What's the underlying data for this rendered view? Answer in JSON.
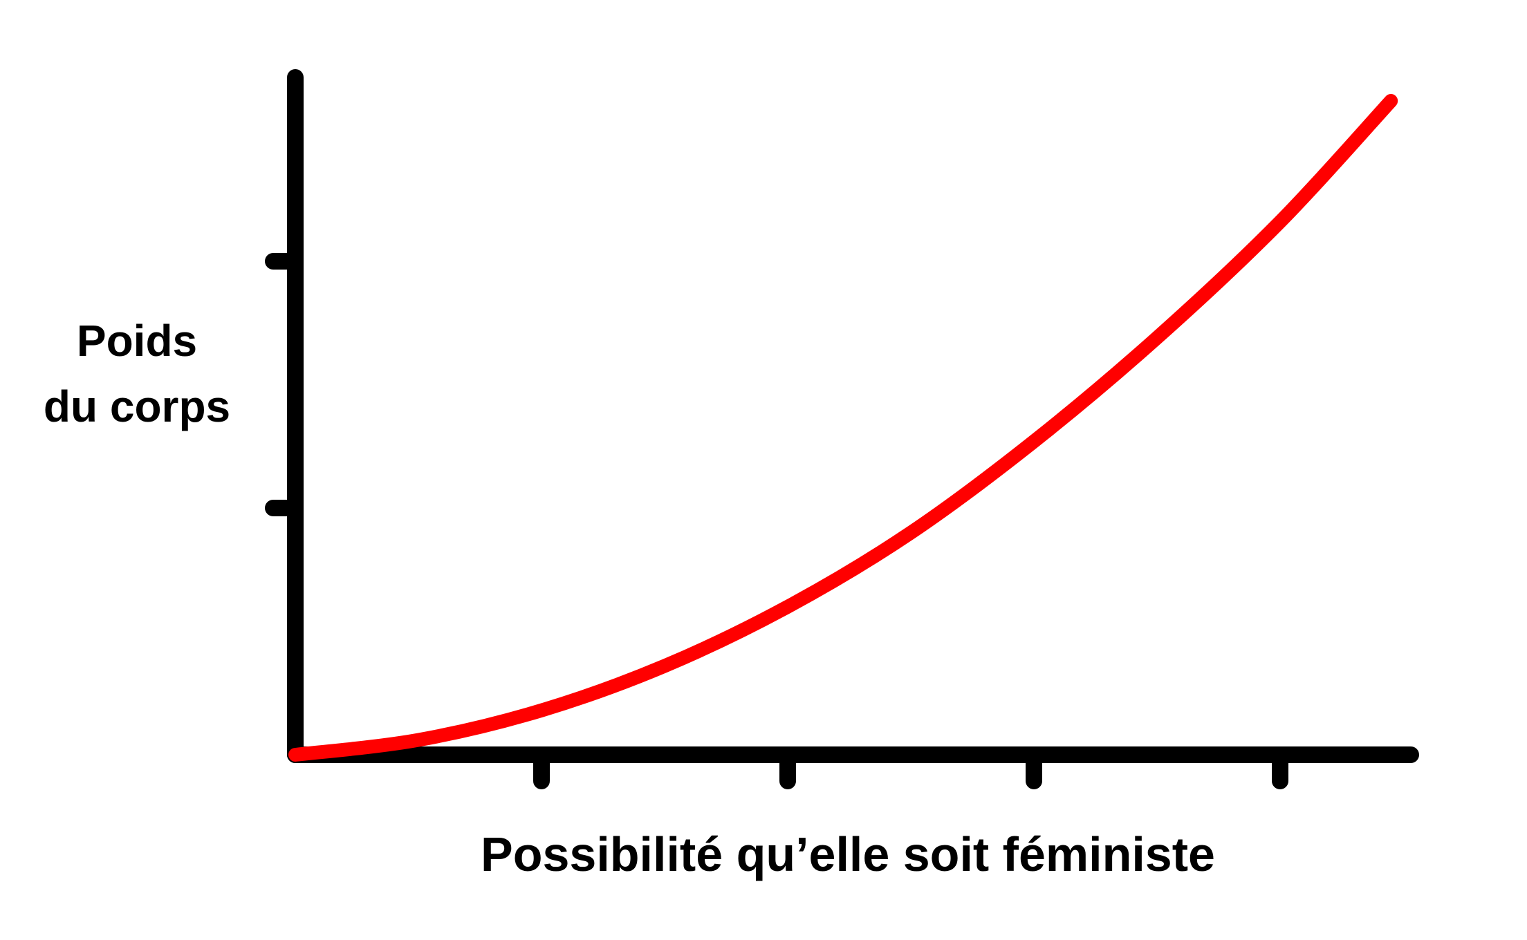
{
  "chart_data": {
    "type": "line",
    "title": "",
    "xlabel": "Possibilité qu’elle soit féministe",
    "ylabel_lines": [
      "Poids",
      "du corps"
    ],
    "xlim": [
      0,
      4.5
    ],
    "ylim": [
      0,
      2.75
    ],
    "xticks": [
      1,
      2,
      3,
      4
    ],
    "yticks": [
      1,
      2
    ],
    "grid": false,
    "legend": "none",
    "series": [
      {
        "color": "#ff0000",
        "x": [
          0,
          0.5,
          1,
          1.5,
          2,
          2.5,
          3,
          3.5,
          4,
          4.45
        ],
        "y": [
          0,
          0.06,
          0.18,
          0.36,
          0.6,
          0.9,
          1.27,
          1.69,
          2.16,
          2.65
        ]
      }
    ],
    "axis_color": "#000000"
  }
}
